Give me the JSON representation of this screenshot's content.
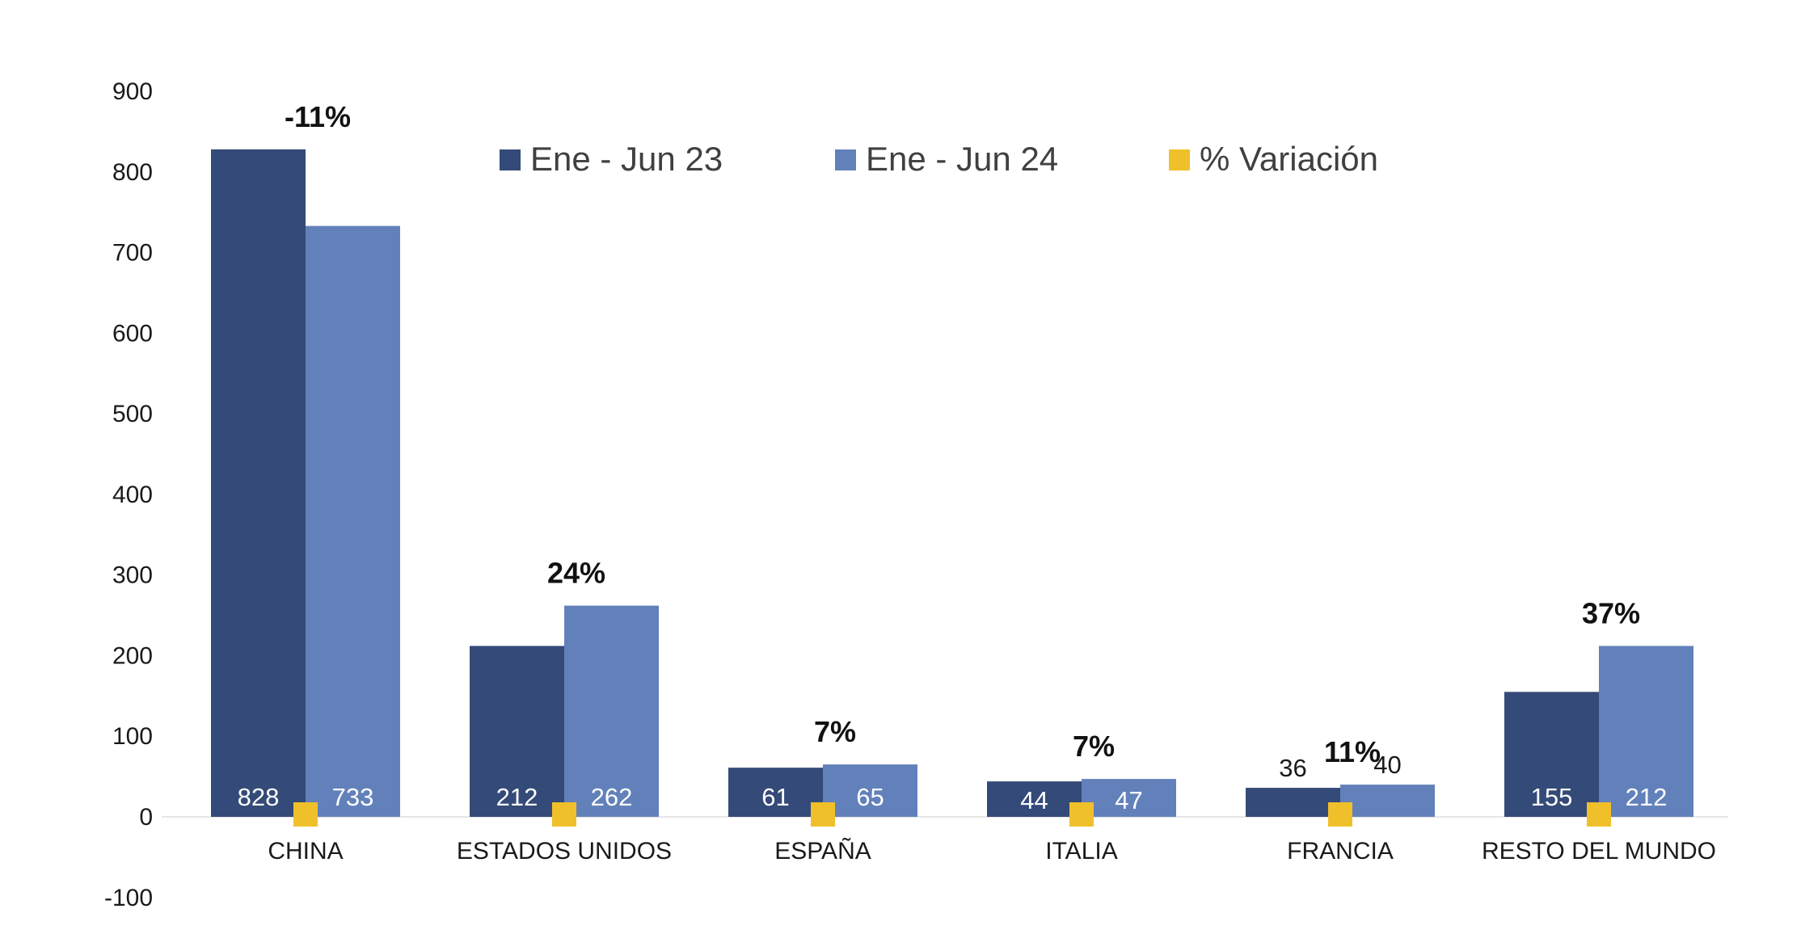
{
  "chart_data": {
    "type": "bar",
    "categories": [
      "CHINA",
      "ESTADOS UNIDOS",
      "ESPAÑA",
      "ITALIA",
      "FRANCIA",
      "RESTO DEL MUNDO"
    ],
    "series": [
      {
        "name": "Ene - Jun 23",
        "values": [
          828,
          212,
          61,
          44,
          36,
          155
        ],
        "color": "#344a78",
        "value_labels": [
          "828",
          "212",
          "61",
          "44",
          "36",
          "155"
        ]
      },
      {
        "name": "Ene - Jun 24",
        "values": [
          733,
          262,
          65,
          47,
          40,
          212
        ],
        "color": "#6281bb",
        "value_labels": [
          "733",
          "262",
          "65",
          "47",
          "40",
          "212"
        ]
      },
      {
        "name": "% Variación",
        "values": [
          -11,
          24,
          7,
          7,
          11,
          37
        ],
        "color": "#f0c02a",
        "value_labels": [
          "-11%",
          "24%",
          "7%",
          "7%",
          "11%",
          "37%"
        ]
      }
    ],
    "y_ticks": [
      "900",
      "800",
      "700",
      "600",
      "500",
      "400",
      "300",
      "200",
      "100",
      "0",
      "-100"
    ],
    "ylim": [
      -100,
      900
    ],
    "legend_position": "top",
    "grid": false
  }
}
